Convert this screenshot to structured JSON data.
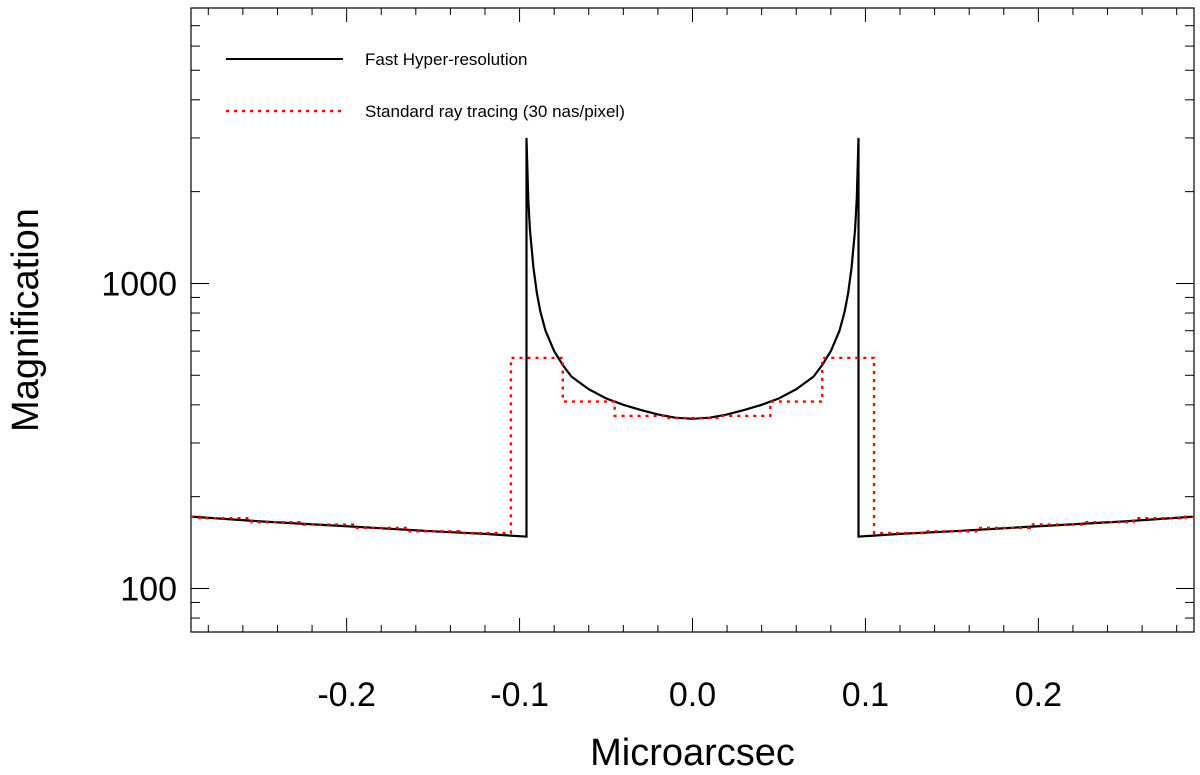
{
  "chart_data": {
    "type": "line",
    "xlabel": "Microarcsec",
    "ylabel": "Magnification",
    "xlim": [
      -0.29,
      0.29
    ],
    "ylim": [
      72,
      8000
    ],
    "y_scale": "log",
    "grid": false,
    "legend_position": "top-left",
    "x_ticks": [
      {
        "value": -0.2,
        "label": "-0.2"
      },
      {
        "value": -0.1,
        "label": "-0.1"
      },
      {
        "value": 0.0,
        "label": "0.0"
      },
      {
        "value": 0.1,
        "label": "0.1"
      },
      {
        "value": 0.2,
        "label": "0.2"
      }
    ],
    "y_ticks": [
      {
        "value": 100,
        "label": "100"
      },
      {
        "value": 1000,
        "label": "1000"
      }
    ],
    "series": [
      {
        "name": "Fast Hyper-resolution",
        "color": "#000000",
        "style": "solid",
        "x": [
          -0.29,
          -0.25,
          -0.2,
          -0.15,
          -0.12,
          -0.105,
          -0.096,
          -0.096,
          -0.095,
          -0.094,
          -0.092,
          -0.09,
          -0.088,
          -0.085,
          -0.08,
          -0.075,
          -0.07,
          -0.06,
          -0.05,
          -0.04,
          -0.03,
          -0.02,
          -0.01,
          0.0,
          0.01,
          0.02,
          0.03,
          0.04,
          0.05,
          0.06,
          0.07,
          0.075,
          0.08,
          0.085,
          0.088,
          0.09,
          0.092,
          0.094,
          0.095,
          0.096,
          0.096,
          0.105,
          0.12,
          0.15,
          0.2,
          0.25,
          0.29
        ],
        "y": [
          172,
          166,
          160,
          154,
          151,
          149,
          148,
          3000,
          1900,
          1500,
          1130,
          930,
          810,
          700,
          600,
          540,
          495,
          450,
          420,
          400,
          385,
          372,
          363,
          360,
          363,
          372,
          385,
          400,
          420,
          450,
          495,
          540,
          600,
          700,
          810,
          930,
          1130,
          1500,
          1900,
          3000,
          148,
          149,
          151,
          154,
          160,
          166,
          172
        ]
      },
      {
        "name": "Standard ray tracing (30 nas/pixel)",
        "color": "#ff0000",
        "style": "dotted",
        "x": [
          -0.29,
          -0.285,
          -0.285,
          -0.255,
          -0.255,
          -0.225,
          -0.225,
          -0.195,
          -0.195,
          -0.165,
          -0.165,
          -0.135,
          -0.135,
          -0.105,
          -0.105,
          -0.075,
          -0.075,
          -0.045,
          -0.045,
          -0.015,
          -0.015,
          0.015,
          0.015,
          0.045,
          0.045,
          0.075,
          0.075,
          0.105,
          0.105,
          0.135,
          0.135,
          0.165,
          0.165,
          0.195,
          0.195,
          0.225,
          0.225,
          0.255,
          0.255,
          0.285,
          0.285,
          0.29
        ],
        "y": [
          172,
          172,
          170,
          170,
          165,
          165,
          162,
          162,
          158,
          158,
          154,
          154,
          152,
          152,
          570,
          570,
          410,
          410,
          368,
          368,
          362,
          362,
          368,
          368,
          410,
          410,
          570,
          570,
          152,
          152,
          154,
          154,
          158,
          158,
          162,
          162,
          165,
          165,
          170,
          170,
          172,
          172
        ]
      }
    ]
  }
}
